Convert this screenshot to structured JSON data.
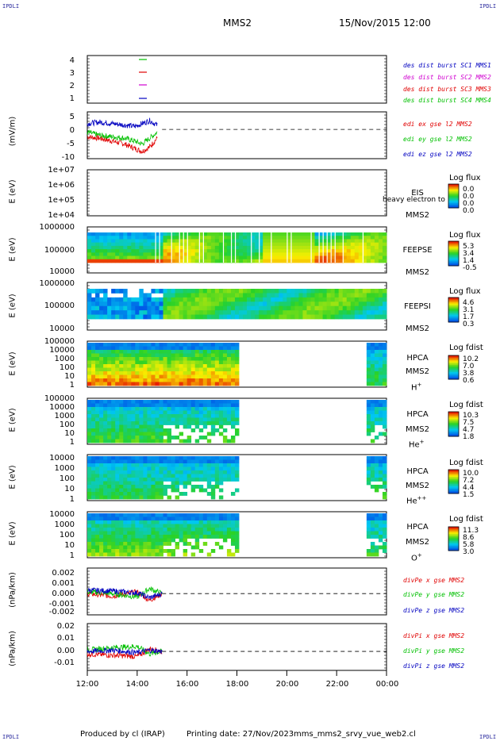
{
  "header": {
    "corner_tl": "IPDLI",
    "corner_tr": "IPDLI",
    "corner_bl": "IPDLI",
    "corner_br": "IPDLI",
    "spacecraft": "MMS2",
    "date": "15/Nov/2015 12:00"
  },
  "footer": {
    "producer": "Produced by cl (IRAP)",
    "printing": "Printing date: 27/Nov/2023",
    "filename": "mms_mms2_srvy_vue_web2.cl"
  },
  "colors": {
    "red": "#e00000",
    "green": "#00c000",
    "blue": "#0000c0",
    "magenta": "#d000d0"
  },
  "chart_data": [
    {
      "type": "line",
      "panel": "burst",
      "y_ticks": [
        "4",
        "3",
        "2",
        "1"
      ],
      "ylim": [
        0.5,
        4.5
      ],
      "legend": [
        "des dist burst SC1 MMS1",
        "des dist burst SC2 MMS2",
        "des dist burst SC3 MMS3",
        "des dist burst SC4 MMS4"
      ],
      "legend_colors": [
        "#0000c0",
        "#d000d0",
        "#e00000",
        "#00c000"
      ]
    },
    {
      "type": "line",
      "panel": "edi",
      "ylabel": "(mV/m)",
      "y_ticks": [
        "5",
        "0",
        "-5",
        "-10"
      ],
      "ylim": [
        -10,
        6
      ],
      "series": [
        {
          "name": "edi ex gse l2 MMS2",
          "color": "#e00000",
          "x": [
            12.0,
            12.5,
            13.0,
            13.5,
            13.9,
            14.2,
            14.5,
            14.8
          ],
          "values": [
            -2.5,
            -3.0,
            -4.0,
            -5.0,
            -6.5,
            -7.5,
            -6.0,
            -3.0
          ]
        },
        {
          "name": "edi ey gse l2 MMS2",
          "color": "#00c000",
          "x": [
            12.0,
            12.5,
            13.0,
            13.5,
            13.9,
            14.2,
            14.5,
            14.8
          ],
          "values": [
            -1.0,
            -2.0,
            -2.5,
            -3.0,
            -4.0,
            -5.0,
            -3.0,
            -1.0
          ]
        },
        {
          "name": "edi ez gse l2 MMS2",
          "color": "#0000c0",
          "x": [
            12.0,
            12.5,
            13.0,
            13.5,
            13.9,
            14.2,
            14.5,
            14.8
          ],
          "values": [
            2.0,
            2.5,
            2.0,
            1.5,
            1.0,
            2.0,
            3.0,
            1.5
          ]
        }
      ]
    },
    {
      "type": "heatmap",
      "panel": "eis",
      "ylabel": "E (eV)",
      "y_ticks": [
        "1e+07",
        "1e+06",
        "1e+05",
        "1e+04"
      ],
      "instrument": [
        "EIS",
        "MMS2"
      ],
      "overlay_text": "heavy electron to",
      "cb_title": "Log flux",
      "cb_values": [
        "0.0",
        "0.0",
        "0.0",
        "0.0"
      ]
    },
    {
      "type": "heatmap",
      "panel": "feeps-e",
      "ylabel": "E (eV)",
      "y_ticks": [
        "1000000",
        "100000",
        "10000"
      ],
      "instrument": [
        "FEEPSE",
        "MMS2"
      ],
      "cb_title": "Log flux",
      "cb_values": [
        "5.3",
        "3.4",
        "1.4",
        "-0.5"
      ]
    },
    {
      "type": "heatmap",
      "panel": "feeps-i",
      "ylabel": "E (eV)",
      "y_ticks": [
        "1000000",
        "100000",
        "10000"
      ],
      "instrument": [
        "FEEPSI",
        "MMS2"
      ],
      "cb_title": "Log flux",
      "cb_values": [
        "4.6",
        "3.1",
        "1.7",
        "0.3"
      ]
    },
    {
      "type": "heatmap",
      "panel": "hpca-h",
      "ylabel": "E (eV)",
      "y_ticks": [
        "100000",
        "10000",
        "1000",
        "100",
        "10",
        "1"
      ],
      "instrument": [
        "HPCA",
        "MMS2"
      ],
      "species": "H",
      "charge": "+",
      "cb_title": "Log fdist",
      "cb_values": [
        "10.2",
        "7.0",
        "3.8",
        "0.6"
      ]
    },
    {
      "type": "heatmap",
      "panel": "hpca-he",
      "ylabel": "E (eV)",
      "y_ticks": [
        "100000",
        "10000",
        "1000",
        "100",
        "10",
        "1"
      ],
      "instrument": [
        "HPCA",
        "MMS2"
      ],
      "species": "He",
      "charge": "+",
      "cb_title": "Log fdist",
      "cb_values": [
        "10.3",
        "7.5",
        "4.7",
        "1.8"
      ]
    },
    {
      "type": "heatmap",
      "panel": "hpca-hepp",
      "ylabel": "E (eV)",
      "y_ticks": [
        "10000",
        "1000",
        "100",
        "10",
        "1"
      ],
      "instrument": [
        "HPCA",
        "MMS2"
      ],
      "species": "He",
      "charge": "++",
      "cb_title": "Log fdist",
      "cb_values": [
        "10.0",
        "7.2",
        "4.4",
        "1.5"
      ]
    },
    {
      "type": "heatmap",
      "panel": "hpca-o",
      "ylabel": "E (eV)",
      "y_ticks": [
        "10000",
        "1000",
        "100",
        "10",
        "1"
      ],
      "instrument": [
        "HPCA",
        "MMS2"
      ],
      "species": "O",
      "charge": "+",
      "cb_title": "Log fdist",
      "cb_values": [
        "11.3",
        "8.6",
        "5.8",
        "3.0"
      ]
    },
    {
      "type": "line",
      "panel": "divpe",
      "ylabel": "(nPa/km)",
      "y_ticks": [
        "0.002",
        "0.001",
        "0.000",
        "-0.001",
        "-0.002"
      ],
      "ylim": [
        -0.0025,
        0.003
      ],
      "series": [
        {
          "name": "divPe x gse MMS2",
          "color": "#e00000",
          "x": [
            12.0,
            13.0,
            14.0,
            14.5,
            15.0
          ],
          "values": [
            0.0,
            -0.0003,
            0.0002,
            -0.0008,
            0.0
          ]
        },
        {
          "name": "divPe y gse MMS2",
          "color": "#00c000",
          "x": [
            12.0,
            13.0,
            14.0,
            14.5,
            15.0
          ],
          "values": [
            0.0002,
            0.0,
            -0.0004,
            0.0006,
            0.0
          ]
        },
        {
          "name": "divPe z gse MMS2",
          "color": "#0000c0",
          "x": [
            12.0,
            13.0,
            14.0,
            14.5,
            15.0
          ],
          "values": [
            0.0004,
            0.0003,
            0.0001,
            -0.0005,
            0.0
          ]
        }
      ]
    },
    {
      "type": "line",
      "panel": "divpi",
      "ylabel": "(nPa/km)",
      "y_ticks": [
        "0.02",
        "0.01",
        "0.00",
        "-0.01"
      ],
      "ylim": [
        -0.015,
        0.022
      ],
      "series": [
        {
          "name": "divPi x gse MMS2",
          "color": "#e00000",
          "x": [
            12.0,
            13.0,
            14.0,
            14.5,
            15.0
          ],
          "values": [
            -0.002,
            -0.003,
            -0.004,
            0.002,
            0.0
          ]
        },
        {
          "name": "divPi y gse MMS2",
          "color": "#00c000",
          "x": [
            12.0,
            13.0,
            14.0,
            14.5,
            15.0
          ],
          "values": [
            0.001,
            0.003,
            0.004,
            -0.002,
            0.0
          ]
        },
        {
          "name": "divPi z gse MMS2",
          "color": "#0000c0",
          "x": [
            12.0,
            13.0,
            14.0,
            14.5,
            15.0
          ],
          "values": [
            0.0,
            0.001,
            -0.001,
            0.001,
            0.0
          ]
        }
      ]
    }
  ],
  "x_axis": {
    "ticks": [
      "12:00",
      "14:00",
      "16:00",
      "18:00",
      "20:00",
      "22:00",
      "00:00"
    ]
  }
}
